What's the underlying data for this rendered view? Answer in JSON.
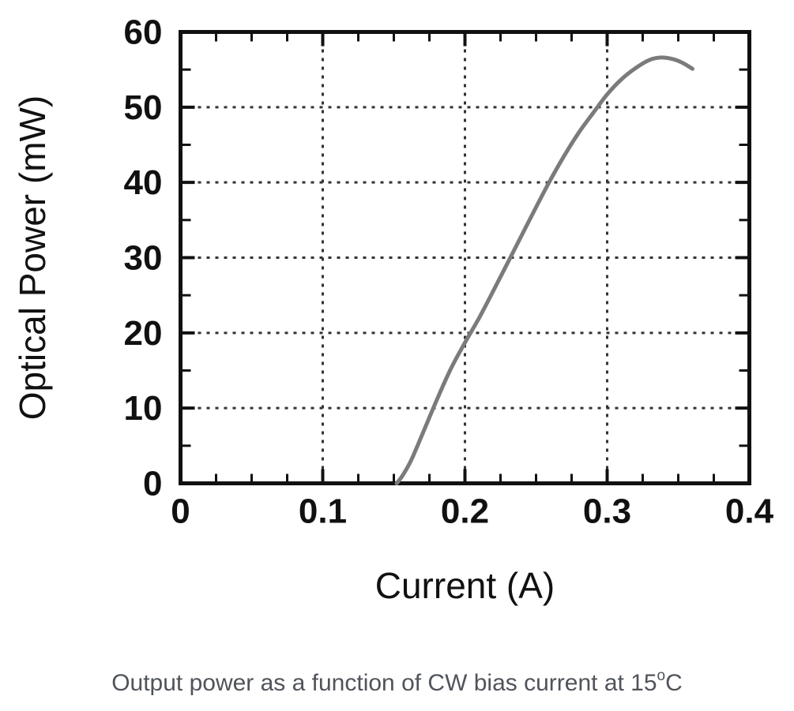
{
  "page": {
    "background": "#ffffff"
  },
  "caption": {
    "before": "Output power as a function of CW bias current at 15",
    "sup": "o",
    "after": "C",
    "color": "#50545a"
  },
  "chart_data": {
    "type": "line",
    "title": "",
    "xlabel": "Current (A)",
    "ylabel": "Optical Power (mW)",
    "xlim": [
      0,
      0.4
    ],
    "ylim": [
      0,
      60
    ],
    "x_major_ticks": [
      0,
      0.1,
      0.2,
      0.3,
      0.4
    ],
    "x_tick_labels": [
      "0",
      "0.1",
      "0.2",
      "0.3",
      "0.4"
    ],
    "y_major_ticks": [
      0,
      10,
      20,
      30,
      40,
      50,
      60
    ],
    "y_tick_labels": [
      "0",
      "10",
      "20",
      "30",
      "40",
      "50",
      "60"
    ],
    "x_minor_step": 0.025,
    "y_minor_step": 5,
    "grid": {
      "style": "dotted",
      "x_lines": [
        0.1,
        0.2,
        0.3
      ],
      "y_lines": [
        10,
        20,
        30,
        40,
        50
      ]
    },
    "legend": "none",
    "axis_color": "#111111",
    "grid_color": "#333333",
    "series": [
      {
        "name": "optical-power-vs-current",
        "color": "#7b7b7b",
        "points": [
          [
            0.152,
            0
          ],
          [
            0.156,
            1
          ],
          [
            0.162,
            3
          ],
          [
            0.17,
            6.5
          ],
          [
            0.18,
            11
          ],
          [
            0.19,
            15.2
          ],
          [
            0.2,
            18.7
          ],
          [
            0.21,
            22
          ],
          [
            0.22,
            25.6
          ],
          [
            0.23,
            29.3
          ],
          [
            0.24,
            33
          ],
          [
            0.25,
            36.7
          ],
          [
            0.26,
            40.3
          ],
          [
            0.27,
            43.6
          ],
          [
            0.28,
            46.6
          ],
          [
            0.29,
            49.2
          ],
          [
            0.3,
            51.7
          ],
          [
            0.31,
            53.7
          ],
          [
            0.32,
            55.2
          ],
          [
            0.33,
            56.3
          ],
          [
            0.338,
            56.6
          ],
          [
            0.346,
            56.4
          ],
          [
            0.353,
            55.9
          ],
          [
            0.36,
            55.1
          ]
        ]
      }
    ]
  }
}
